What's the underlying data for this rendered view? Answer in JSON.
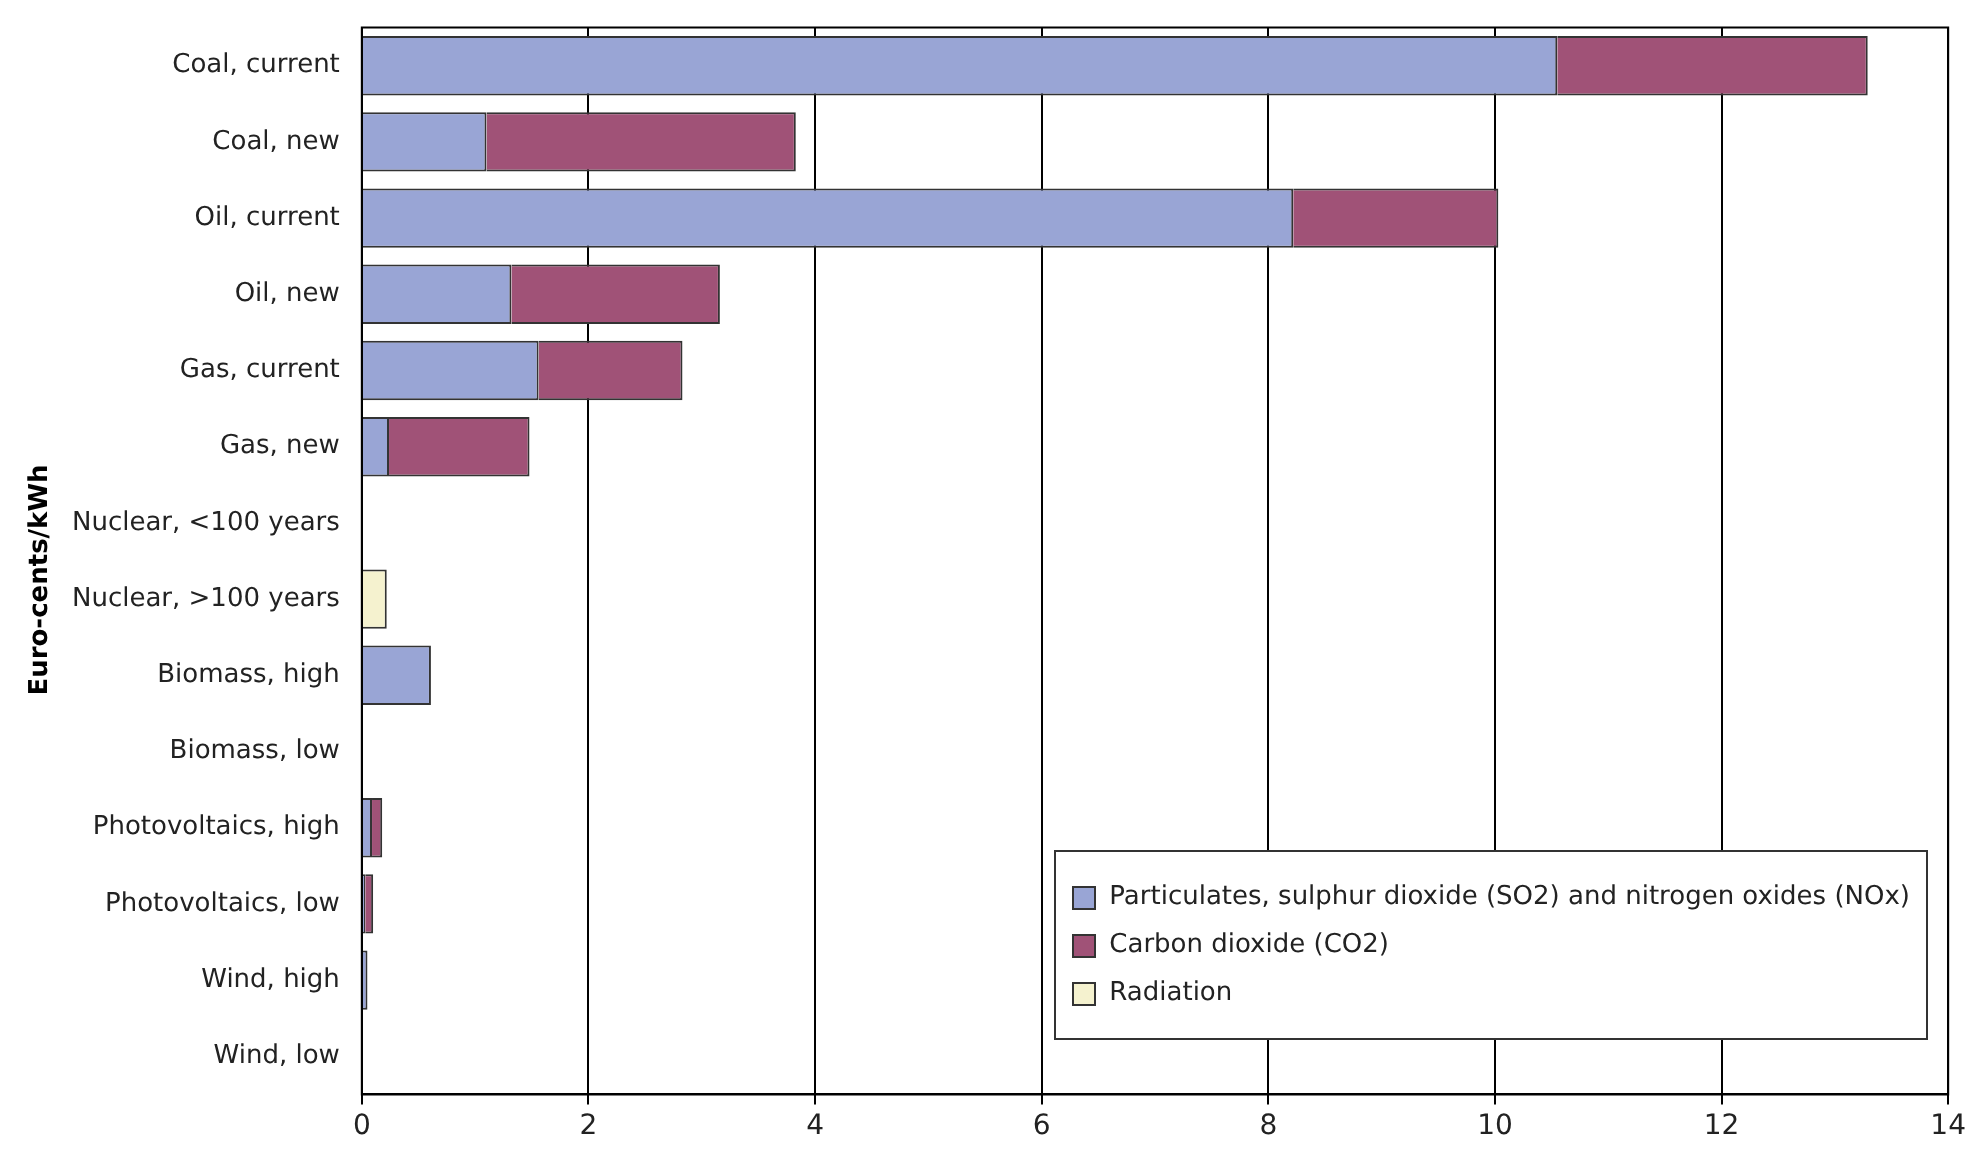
{
  "chart_data": {
    "type": "bar",
    "orientation": "horizontal",
    "stacked": true,
    "ylabel": "Euro-cents/kWh",
    "categories": [
      "Coal, current",
      "Coal, new",
      "Oil, current",
      "Oil, new",
      "Gas, current",
      "Gas, new",
      "Nuclear, <100 years",
      "Nuclear, >100 years",
      "Biomass, high",
      "Biomass, low",
      "Photovoltaics, high",
      "Photovoltaics, low",
      "Wind, high",
      "Wind, low"
    ],
    "series": [
      {
        "name": "Particulates, sulphur dioxide (SO2) and nitrogen oxides (NOx)",
        "color": "#99a5d5",
        "values": [
          10.55,
          1.1,
          8.22,
          1.32,
          1.56,
          0.24,
          null,
          null,
          0.61,
          null,
          0.09,
          0.03,
          0.05,
          null
        ]
      },
      {
        "name": "Carbon dioxide (CO2)",
        "color": "#a05277",
        "values": [
          2.74,
          2.73,
          1.81,
          1.84,
          1.27,
          1.24,
          null,
          null,
          null,
          null,
          0.09,
          0.07,
          null,
          null
        ]
      },
      {
        "name": "Radiation",
        "color": "#f5f2cf",
        "values": [
          null,
          null,
          null,
          null,
          null,
          null,
          null,
          0.22,
          null,
          null,
          null,
          null,
          null,
          null
        ]
      }
    ],
    "xlim": [
      0,
      14
    ],
    "xticks": [
      0,
      2,
      4,
      6,
      8,
      10,
      12,
      14
    ],
    "grid": "x",
    "legend": "bottom right"
  }
}
